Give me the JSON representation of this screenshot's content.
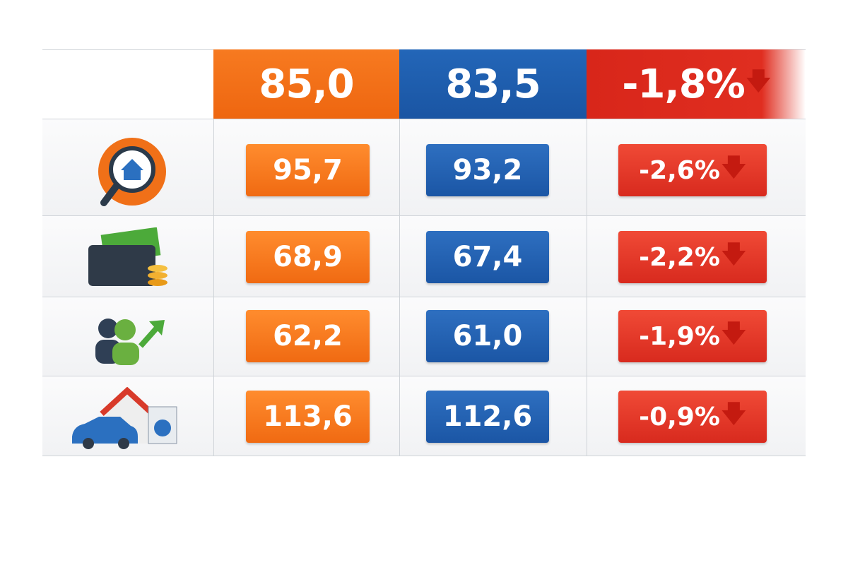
{
  "chart_data": {
    "type": "table",
    "columns": [
      "",
      "",
      "",
      ""
    ],
    "header": {
      "col1": "85,0",
      "col2": "83,5",
      "col3": "-1,8%"
    },
    "rows": [
      {
        "icon": "house-search-icon",
        "col1": "95,7",
        "col2": "93,2",
        "col3": "-2,6%"
      },
      {
        "icon": "wallet-money-icon",
        "col1": "68,9",
        "col2": "67,4",
        "col3": "-2,2%"
      },
      {
        "icon": "people-growth-icon",
        "col1": "62,2",
        "col2": "61,0",
        "col3": "-1,9%"
      },
      {
        "icon": "car-house-appliance-icon",
        "col1": "113,6",
        "col2": "112,6",
        "col3": "-0,9%"
      }
    ],
    "colors": {
      "col1": "#f26f17",
      "col2": "#1e5aa8",
      "col3": "#dc2c20"
    }
  }
}
